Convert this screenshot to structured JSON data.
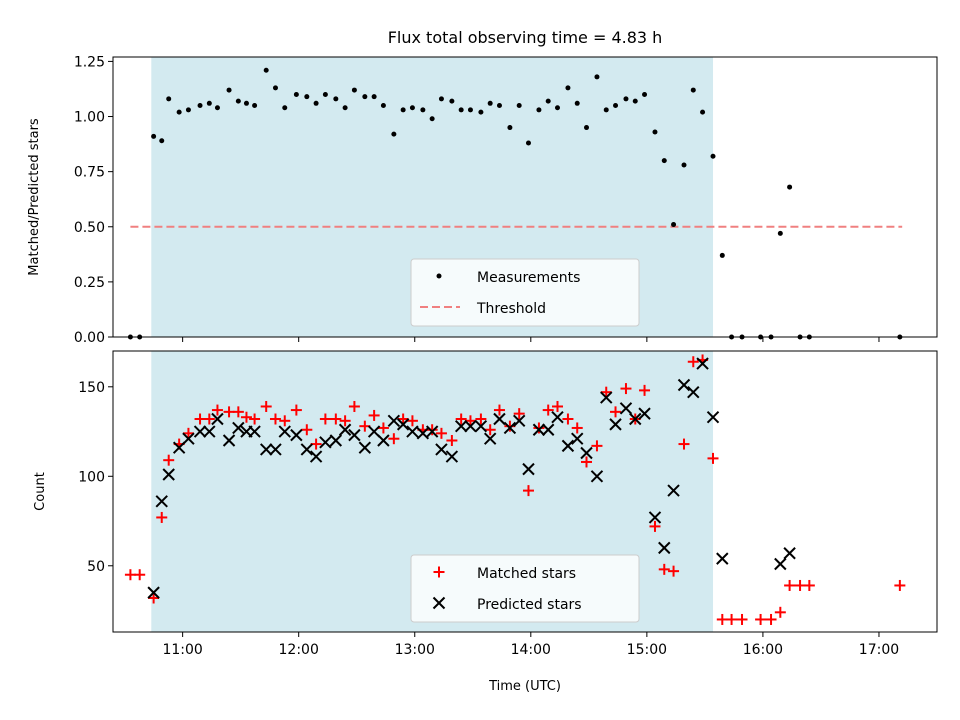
{
  "chart_data": [
    {
      "type": "scatter",
      "title": "Flux total observing time = 4.83 h",
      "ylabel": "Matched/Predicted stars",
      "ylim": [
        0,
        1.27
      ],
      "yticks": [
        "0.00",
        "0.25",
        "0.50",
        "0.75",
        "1.00",
        "1.25"
      ],
      "xlim": [
        10.4,
        17.5
      ],
      "shaded_span": [
        10.73,
        15.57
      ],
      "shade_color": "#d3eaf0",
      "threshold": {
        "name": "Threshold",
        "y": 0.5,
        "x_range": [
          10.55,
          17.2
        ],
        "color": "#f08080",
        "style": "dashed"
      },
      "legend": {
        "entries": [
          "Measurements",
          "Threshold"
        ],
        "placement": "lower center"
      },
      "series": [
        {
          "name": "Measurements",
          "marker": "dot",
          "color": "#000000",
          "x": [
            10.55,
            10.63,
            10.75,
            10.82,
            10.88,
            10.97,
            11.05,
            11.15,
            11.23,
            11.3,
            11.4,
            11.48,
            11.55,
            11.62,
            11.72,
            11.8,
            11.88,
            11.98,
            12.07,
            12.15,
            12.23,
            12.32,
            12.4,
            12.48,
            12.57,
            12.65,
            12.73,
            12.82,
            12.9,
            12.98,
            13.07,
            13.15,
            13.23,
            13.32,
            13.4,
            13.48,
            13.57,
            13.65,
            13.73,
            13.82,
            13.9,
            13.98,
            14.07,
            14.15,
            14.23,
            14.32,
            14.4,
            14.48,
            14.57,
            14.65,
            14.73,
            14.82,
            14.9,
            14.98,
            15.07,
            15.15,
            15.23,
            15.32,
            15.4,
            15.48,
            15.57,
            15.65,
            15.73,
            15.82,
            15.98,
            16.07,
            16.15,
            16.23,
            16.32,
            16.4,
            17.18
          ],
          "y": [
            0,
            0,
            0.91,
            0.89,
            1.08,
            1.02,
            1.03,
            1.05,
            1.06,
            1.04,
            1.12,
            1.07,
            1.06,
            1.05,
            1.21,
            1.13,
            1.04,
            1.1,
            1.09,
            1.06,
            1.1,
            1.08,
            1.04,
            1.12,
            1.09,
            1.09,
            1.05,
            0.92,
            1.03,
            1.04,
            1.03,
            0.99,
            1.08,
            1.07,
            1.03,
            1.03,
            1.02,
            1.06,
            1.05,
            0.95,
            1.05,
            0.88,
            1.03,
            1.07,
            1.04,
            1.13,
            1.06,
            0.95,
            1.18,
            1.03,
            1.05,
            1.08,
            1.07,
            1.1,
            0.93,
            0.8,
            0.51,
            0.78,
            1.12,
            1.02,
            0.82,
            0.37,
            0,
            0,
            0,
            0,
            0.47,
            0.68,
            0,
            0,
            0
          ]
        }
      ]
    },
    {
      "type": "scatter",
      "xlabel": "Time (UTC)",
      "ylabel": "Count",
      "ylim": [
        13,
        170
      ],
      "yticks": [
        "50",
        "100",
        "150"
      ],
      "xlim": [
        10.4,
        17.5
      ],
      "xticks": [
        "11:00",
        "12:00",
        "13:00",
        "14:00",
        "15:00",
        "16:00",
        "17:00"
      ],
      "shaded_span": [
        10.73,
        15.57
      ],
      "legend": {
        "entries": [
          "Matched stars",
          "Predicted stars"
        ],
        "placement": "lower center"
      },
      "series": [
        {
          "name": "Matched stars",
          "marker": "plus",
          "color": "#ff0000",
          "x": [
            10.55,
            10.63,
            10.75,
            10.82,
            10.88,
            10.97,
            11.05,
            11.15,
            11.23,
            11.3,
            11.4,
            11.48,
            11.55,
            11.62,
            11.72,
            11.8,
            11.88,
            11.98,
            12.07,
            12.15,
            12.23,
            12.32,
            12.4,
            12.48,
            12.57,
            12.65,
            12.73,
            12.82,
            12.9,
            12.98,
            13.07,
            13.15,
            13.23,
            13.32,
            13.4,
            13.48,
            13.57,
            13.65,
            13.73,
            13.82,
            13.9,
            13.98,
            14.07,
            14.15,
            14.23,
            14.32,
            14.4,
            14.48,
            14.57,
            14.65,
            14.73,
            14.82,
            14.9,
            14.98,
            15.07,
            15.15,
            15.23,
            15.32,
            15.4,
            15.48,
            15.57,
            15.65,
            15.73,
            15.82,
            15.98,
            16.07,
            16.15,
            16.23,
            16.32,
            16.4,
            17.18
          ],
          "y": [
            45,
            45,
            32,
            77,
            109,
            118,
            124,
            132,
            132,
            137,
            136,
            136,
            133,
            132,
            139,
            132,
            131,
            137,
            126,
            118,
            132,
            132,
            131,
            139,
            128,
            134,
            127,
            121,
            132,
            131,
            126,
            126,
            124,
            120,
            132,
            131,
            132,
            126,
            137,
            128,
            135,
            92,
            127,
            137,
            139,
            132,
            127,
            108,
            117,
            147,
            136,
            149,
            132,
            148,
            72,
            48,
            47,
            118,
            164,
            165,
            110,
            20,
            20,
            20,
            20,
            20,
            24,
            39,
            39,
            39,
            39
          ]
        },
        {
          "name": "Predicted stars",
          "marker": "x",
          "color": "#000000",
          "x": [
            10.75,
            10.82,
            10.88,
            10.97,
            11.05,
            11.15,
            11.23,
            11.3,
            11.4,
            11.48,
            11.55,
            11.62,
            11.72,
            11.8,
            11.88,
            11.98,
            12.07,
            12.15,
            12.23,
            12.32,
            12.4,
            12.48,
            12.57,
            12.65,
            12.73,
            12.82,
            12.9,
            12.98,
            13.07,
            13.15,
            13.23,
            13.32,
            13.4,
            13.48,
            13.57,
            13.65,
            13.73,
            13.82,
            13.9,
            13.98,
            14.07,
            14.15,
            14.23,
            14.32,
            14.4,
            14.48,
            14.57,
            14.65,
            14.73,
            14.82,
            14.9,
            14.98,
            15.07,
            15.15,
            15.23,
            15.32,
            15.4,
            15.48,
            15.57,
            15.65,
            16.15,
            16.23
          ],
          "y": [
            35,
            86,
            101,
            116,
            121,
            125,
            125,
            132,
            120,
            127,
            125,
            125,
            115,
            115,
            125,
            123,
            115,
            111,
            119,
            120,
            126,
            123,
            116,
            125,
            120,
            131,
            129,
            125,
            124,
            125,
            115,
            111,
            128,
            128,
            128,
            121,
            132,
            127,
            131,
            104,
            126,
            126,
            133,
            117,
            121,
            113,
            100,
            144,
            129,
            138,
            132,
            135,
            77,
            60,
            92,
            151,
            147,
            163,
            133,
            54,
            51,
            57
          ]
        }
      ]
    }
  ]
}
